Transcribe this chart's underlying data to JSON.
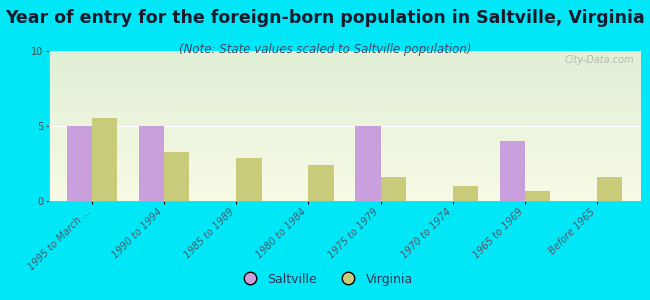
{
  "title": "Year of entry for the foreign-born population in Saltville, Virginia",
  "subtitle": "(Note: State values scaled to Saltville population)",
  "categories": [
    "1995 to March ...",
    "1990 to 1994",
    "1985 to 1989",
    "1980 to 1984",
    "1975 to 1979",
    "1970 to 1974",
    "1965 to 1969",
    "Before 1965"
  ],
  "saltville_values": [
    5,
    5,
    0,
    0,
    5,
    0,
    4,
    0
  ],
  "virginia_values": [
    5.5,
    3.3,
    2.9,
    2.4,
    1.6,
    1.0,
    0.7,
    1.6
  ],
  "saltville_color": "#c9a0dc",
  "virginia_color": "#c8cc7a",
  "background_color": "#00e8f8",
  "ylim": [
    0,
    10
  ],
  "yticks": [
    0,
    5,
    10
  ],
  "bar_width": 0.35,
  "title_fontsize": 12.5,
  "subtitle_fontsize": 8.5,
  "tick_fontsize": 7,
  "legend_fontsize": 9,
  "watermark": "City-Data.com",
  "xlim_left": -0.6,
  "xlim_right": 7.6
}
